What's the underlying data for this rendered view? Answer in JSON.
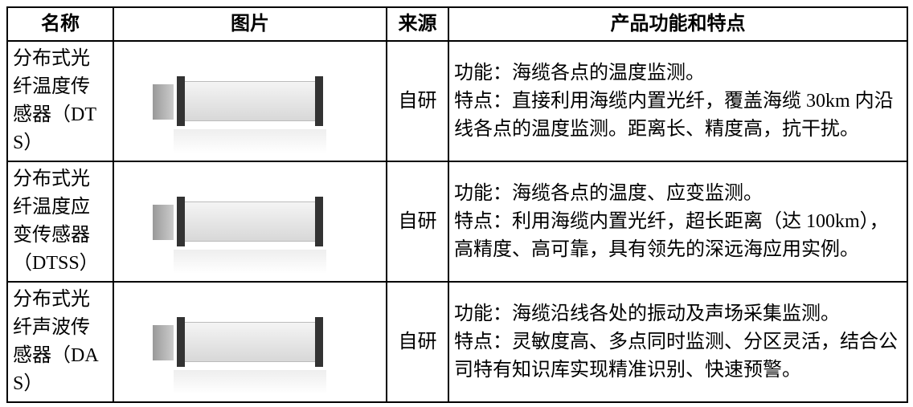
{
  "table": {
    "header": [
      "名称",
      "图片",
      "来源",
      "产品功能和特点"
    ],
    "rows": [
      {
        "name": "分布式光纤温度传感器（DTS）",
        "source": "自研",
        "function": "功能：海缆各点的温度监测。",
        "feature": "特点：直接利用海缆内置光纤，覆盖海缆 30km 内沿线各点的温度监测。距离长、精度高，抗干扰。"
      },
      {
        "name": "分布式光纤温度应变传感器（DTSS）",
        "source": "自研",
        "function": "功能：海缆各点的温度、应变监测。",
        "feature": "特点：利用海缆内置光纤，超长距离（达 100km），高精度、高可靠，具有领先的深远海应用实例。"
      },
      {
        "name": "分布式光纤声波传感器（DAS）",
        "source": "自研",
        "function": "功能：海缆沿线各处的振动及声场采集监测。",
        "feature": "特点：灵敏度高、多点同时监测、分区灵活，结合公司特有知识库实现精准识别、快速预警。"
      }
    ]
  }
}
